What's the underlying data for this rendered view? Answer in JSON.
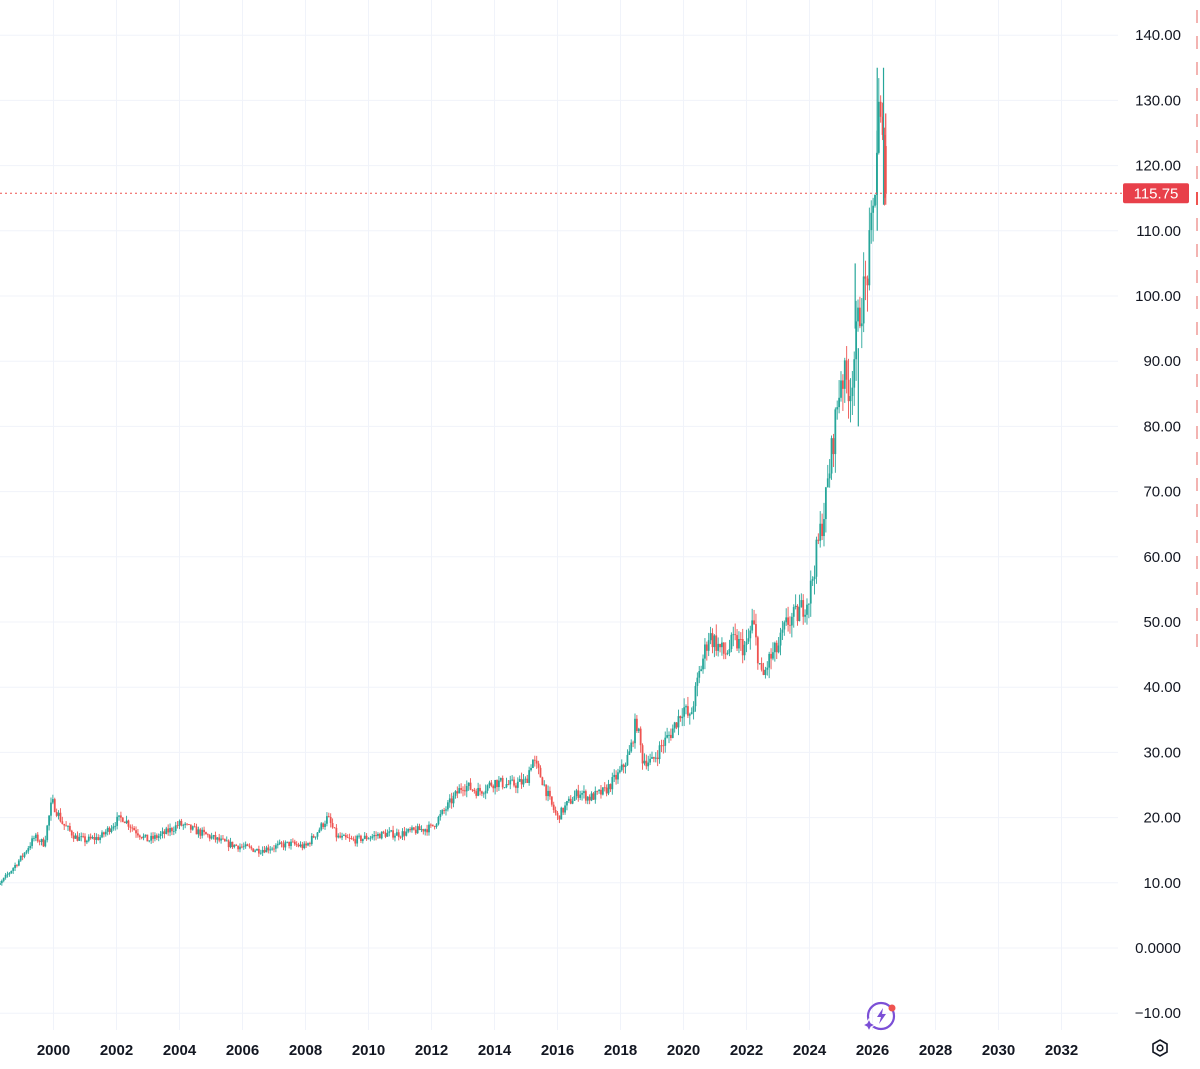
{
  "chart_data": {
    "type": "candlestick",
    "title": "",
    "xlabel": "",
    "ylabel": "",
    "xlim": [
      1998,
      2033.6
    ],
    "ylim": [
      -12,
      142
    ],
    "grid": true,
    "x_ticks": [
      "2000",
      "2002",
      "2004",
      "2006",
      "2008",
      "2010",
      "2012",
      "2014",
      "2016",
      "2018",
      "2020",
      "2022",
      "2024",
      "2026",
      "2028",
      "2030",
      "2032"
    ],
    "x_tick_partial": "8",
    "y_ticks": [
      "140.00",
      "130.00",
      "120.00",
      "110.00",
      "100.00",
      "90.00",
      "80.00",
      "70.00",
      "60.00",
      "50.00",
      "40.00",
      "30.00",
      "20.00",
      "10.00",
      "0.0000",
      "−10.00"
    ],
    "last_price": 115.75,
    "last_price_label": "115.75",
    "trend_points": [
      [
        1998.0,
        8
      ],
      [
        1998.5,
        11
      ],
      [
        1999.0,
        14
      ],
      [
        1999.4,
        17
      ],
      [
        1999.7,
        16
      ],
      [
        1999.95,
        22.5
      ],
      [
        2000.3,
        19
      ],
      [
        2000.7,
        17
      ],
      [
        2001.0,
        16.5
      ],
      [
        2001.5,
        17
      ],
      [
        2002.0,
        19.5
      ],
      [
        2002.2,
        20
      ],
      [
        2002.6,
        18
      ],
      [
        2003.0,
        16.5
      ],
      [
        2003.5,
        17.5
      ],
      [
        2004.0,
        19
      ],
      [
        2004.5,
        18
      ],
      [
        2005.0,
        17
      ],
      [
        2005.5,
        16
      ],
      [
        2006.0,
        15.5
      ],
      [
        2006.5,
        15
      ],
      [
        2007.0,
        15.5
      ],
      [
        2007.5,
        16
      ],
      [
        2008.0,
        15.5
      ],
      [
        2008.4,
        18
      ],
      [
        2008.7,
        20
      ],
      [
        2009.0,
        17
      ],
      [
        2009.5,
        16.5
      ],
      [
        2010.0,
        17
      ],
      [
        2010.5,
        17.5
      ],
      [
        2011.0,
        17.5
      ],
      [
        2011.5,
        18
      ],
      [
        2012.0,
        18.5
      ],
      [
        2012.4,
        21
      ],
      [
        2012.7,
        23
      ],
      [
        2013.0,
        25
      ],
      [
        2013.5,
        24
      ],
      [
        2014.0,
        25.5
      ],
      [
        2014.5,
        25
      ],
      [
        2015.0,
        25.5
      ],
      [
        2015.2,
        29
      ],
      [
        2015.5,
        26
      ],
      [
        2015.8,
        22
      ],
      [
        2016.0,
        20
      ],
      [
        2016.3,
        22
      ],
      [
        2016.7,
        24
      ],
      [
        2017.0,
        23
      ],
      [
        2017.5,
        24
      ],
      [
        2018.0,
        27
      ],
      [
        2018.3,
        30
      ],
      [
        2018.5,
        35
      ],
      [
        2018.7,
        29
      ],
      [
        2019.0,
        28.5
      ],
      [
        2019.3,
        31
      ],
      [
        2019.6,
        33
      ],
      [
        2020.0,
        37
      ],
      [
        2020.2,
        35
      ],
      [
        2020.5,
        42
      ],
      [
        2020.8,
        48
      ],
      [
        2021.0,
        47
      ],
      [
        2021.3,
        45
      ],
      [
        2021.6,
        47
      ],
      [
        2022.0,
        46
      ],
      [
        2022.2,
        50
      ],
      [
        2022.5,
        41
      ],
      [
        2022.7,
        44
      ],
      [
        2023.0,
        46
      ],
      [
        2023.3,
        50
      ],
      [
        2023.6,
        51
      ],
      [
        2024.0,
        54
      ],
      [
        2024.2,
        60
      ],
      [
        2024.5,
        68
      ],
      [
        2024.8,
        80
      ],
      [
        2025.0,
        88
      ],
      [
        2025.3,
        86
      ],
      [
        2025.6,
        98
      ],
      [
        2025.8,
        102
      ],
      [
        2026.0,
        111
      ],
      [
        2026.2,
        128
      ],
      [
        2026.4,
        118
      ]
    ],
    "extreme_wicks": [
      [
        2025.55,
        80,
        92
      ],
      [
        2025.45,
        95,
        105
      ],
      [
        2026.15,
        110,
        135
      ],
      [
        2026.35,
        114,
        135
      ]
    ]
  },
  "ui": {
    "ai_button_icon": "sparkle-bolt-icon",
    "settings_icon": "hexagon-gear-icon",
    "colors": {
      "up": "#26a69a",
      "down": "#ef5350",
      "grid": "#f0f3fa",
      "text": "#131722",
      "price_badge": "#e8404a",
      "ai_icon": "#7b4fd6"
    }
  }
}
